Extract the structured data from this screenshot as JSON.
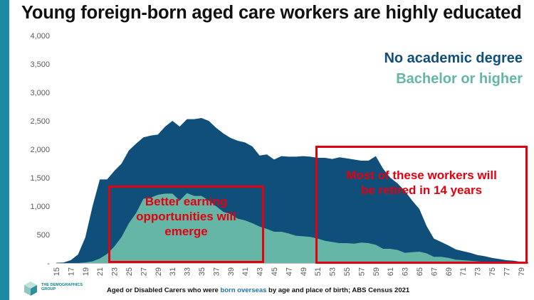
{
  "title": "Young foreign-born aged care workers are highly educated",
  "colors": {
    "sidebar": "#1d8aa3",
    "no_degree": "#0f4f79",
    "bachelor": "#65b6a7",
    "annotation": "#e3000f",
    "source_highlight": "#1f72a8"
  },
  "legend": {
    "no_degree": "No academic degree",
    "bachelor": "Bachelor or higher"
  },
  "annotations": {
    "left": [
      "Better earning",
      "opportunities will",
      "emerge"
    ],
    "right": [
      "Most of these workers will",
      "be retired in 14 years"
    ]
  },
  "source": {
    "prefix": "Aged or Disabled Carers who were ",
    "highlight": "born overseas",
    "suffix": " by age and place of birth; ABS Census 2021"
  },
  "logo": {
    "text": "THE DEMOGRAPHICS GROUP",
    "icon": "hexagon-cube-icon"
  },
  "chart_data": {
    "type": "area",
    "stacked": false,
    "x": [
      15,
      16,
      17,
      18,
      19,
      20,
      21,
      22,
      23,
      24,
      25,
      26,
      27,
      28,
      29,
      30,
      31,
      32,
      33,
      34,
      35,
      36,
      37,
      38,
      39,
      40,
      41,
      42,
      43,
      44,
      45,
      46,
      47,
      48,
      49,
      50,
      51,
      52,
      53,
      54,
      55,
      56,
      57,
      58,
      59,
      60,
      61,
      62,
      63,
      64,
      65,
      66,
      67,
      68,
      69,
      70,
      71,
      72,
      73,
      74,
      75,
      76,
      77,
      78,
      79,
      80
    ],
    "xticks": [
      "15",
      "17",
      "19",
      "21",
      "23",
      "25",
      "27",
      "29",
      "31",
      "33",
      "35",
      "37",
      "39",
      "41",
      "43",
      "45",
      "47",
      "49",
      "51",
      "53",
      "55",
      "57",
      "59",
      "61",
      "63",
      "65",
      "67",
      "69",
      "71",
      "73",
      "75",
      "77",
      "79"
    ],
    "ylim": [
      0,
      4000
    ],
    "yticks": [
      "-",
      "500",
      "1,000",
      "1,500",
      "2,000",
      "2,500",
      "3,000",
      "3,500",
      "4,000"
    ],
    "series": [
      {
        "name": "No academic degree",
        "values": [
          5,
          10,
          50,
          150,
          450,
          1000,
          1470,
          1470,
          1620,
          1750,
          1980,
          2100,
          2210,
          2240,
          2260,
          2400,
          2500,
          2400,
          2530,
          2530,
          2550,
          2500,
          2380,
          2280,
          2200,
          2150,
          2120,
          2050,
          1890,
          1910,
          1820,
          1880,
          1870,
          1870,
          1880,
          1870,
          1850,
          1850,
          1830,
          1860,
          1840,
          1820,
          1800,
          1800,
          1880,
          1660,
          1500,
          1400,
          1270,
          1100,
          950,
          650,
          430,
          370,
          310,
          240,
          210,
          180,
          140,
          120,
          90,
          70,
          50,
          40,
          20,
          10
        ]
      },
      {
        "name": "Bachelor or higher",
        "values": [
          0,
          0,
          0,
          0,
          10,
          30,
          80,
          160,
          290,
          460,
          700,
          880,
          1130,
          1150,
          1200,
          1220,
          1220,
          1100,
          1230,
          1180,
          1180,
          1100,
          1000,
          900,
          860,
          780,
          750,
          700,
          640,
          600,
          550,
          550,
          520,
          480,
          470,
          460,
          430,
          390,
          370,
          350,
          350,
          340,
          360,
          350,
          320,
          250,
          250,
          230,
          180,
          190,
          200,
          170,
          110,
          110,
          90,
          60,
          50,
          40,
          30,
          20,
          15,
          10,
          5,
          5,
          0,
          0
        ]
      }
    ]
  }
}
